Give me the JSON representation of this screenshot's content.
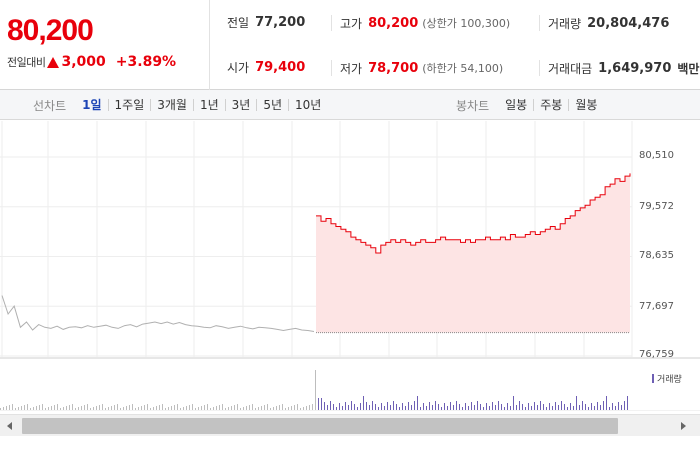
{
  "quote": {
    "price": "80,200",
    "change_label": "전일대비",
    "change_amount": "3,000",
    "change_percent": "+3.89%",
    "up_color": "#e8000b",
    "fields": {
      "prev_close": {
        "label": "전일",
        "value": "77,200"
      },
      "open": {
        "label": "시가",
        "value": "79,400"
      },
      "high": {
        "label": "고가",
        "value": "80,200",
        "sub": "(상한가 100,300)"
      },
      "low": {
        "label": "저가",
        "value": "78,700",
        "sub": "(하한가 54,100)"
      },
      "volume": {
        "label": "거래량",
        "value": "20,804,476"
      },
      "trade_value": {
        "label": "거래대금",
        "value": "1,649,970",
        "unit": "백만"
      }
    }
  },
  "toolbar": {
    "line_label": "선차트",
    "line_periods": [
      "1일",
      "1주일",
      "3개월",
      "1년",
      "3년",
      "5년",
      "10년"
    ],
    "active_period": "1일",
    "candle_label": "봉차트",
    "candle_periods": [
      "일봉",
      "주봉",
      "월봉"
    ]
  },
  "chart_data": {
    "type": "line",
    "y_ticks": [
      "80,510",
      "79,572",
      "78,635",
      "77,697",
      "76,759"
    ],
    "ylim": [
      76759,
      80510
    ],
    "reference_price": 77200,
    "volume_legend": "거래량",
    "colors": {
      "today_line": "#e8000b",
      "today_fill": "#fde4e4",
      "prev_line": "#b0b0b0",
      "volume": "#6e5fb4"
    },
    "previous_day_values": [
      77900,
      77550,
      77700,
      77300,
      77400,
      77250,
      77350,
      77300,
      77280,
      77320,
      77260,
      77300,
      77310,
      77290,
      77330,
      77300,
      77320,
      77340,
      77300,
      77280,
      77330,
      77350,
      77310,
      77360,
      77380,
      77400,
      77370,
      77400,
      77360,
      77390,
      77350,
      77330,
      77320,
      77300,
      77290,
      77330,
      77310,
      77280,
      77300,
      77320,
      77290,
      77270,
      77300,
      77290,
      77280,
      77260,
      77240,
      77260,
      77280,
      77250,
      77240,
      77220
    ],
    "today_values": [
      79400,
      79300,
      79350,
      79250,
      79200,
      79150,
      79100,
      79000,
      78950,
      78900,
      78850,
      78800,
      78700,
      78850,
      78900,
      78950,
      78900,
      78950,
      78900,
      78850,
      78900,
      78950,
      78900,
      78900,
      78950,
      79000,
      78950,
      78950,
      78950,
      78900,
      78950,
      78900,
      78950,
      78950,
      79000,
      78950,
      78950,
      79000,
      78950,
      79050,
      79000,
      79000,
      79050,
      79100,
      79050,
      79100,
      79150,
      79200,
      79150,
      79250,
      79350,
      79400,
      79500,
      79550,
      79600,
      79700,
      79750,
      79800,
      79950,
      80000,
      80100,
      80050,
      80150,
      80200
    ]
  }
}
